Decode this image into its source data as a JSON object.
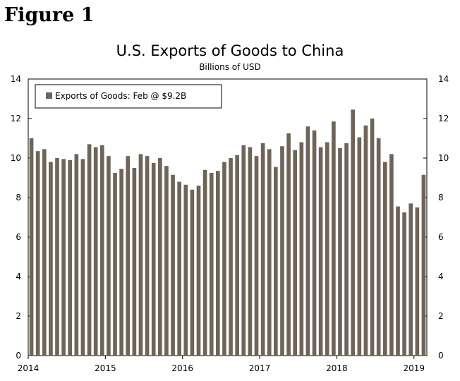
{
  "figure_label": "Figure 1",
  "chart_data": {
    "type": "bar",
    "title": "U.S. Exports of Goods to China",
    "subtitle": "Billions of USD",
    "legend_label": "Exports of Goods: Feb @ $9.2B",
    "legend_position": "top-left",
    "bar_color": "#6e6458",
    "ylim": [
      0,
      14
    ],
    "y_ticks": [
      0,
      2,
      4,
      6,
      8,
      10,
      12,
      14
    ],
    "x_tick_labels": [
      "2014",
      "2015",
      "2016",
      "2017",
      "2018",
      "2019"
    ],
    "x_tick_start_index": 0,
    "x_tick_step": 12,
    "categories": [
      "2014-01",
      "2014-02",
      "2014-03",
      "2014-04",
      "2014-05",
      "2014-06",
      "2014-07",
      "2014-08",
      "2014-09",
      "2014-10",
      "2014-11",
      "2014-12",
      "2015-01",
      "2015-02",
      "2015-03",
      "2015-04",
      "2015-05",
      "2015-06",
      "2015-07",
      "2015-08",
      "2015-09",
      "2015-10",
      "2015-11",
      "2015-12",
      "2016-01",
      "2016-02",
      "2016-03",
      "2016-04",
      "2016-05",
      "2016-06",
      "2016-07",
      "2016-08",
      "2016-09",
      "2016-10",
      "2016-11",
      "2016-12",
      "2017-01",
      "2017-02",
      "2017-03",
      "2017-04",
      "2017-05",
      "2017-06",
      "2017-07",
      "2017-08",
      "2017-09",
      "2017-10",
      "2017-11",
      "2017-12",
      "2018-01",
      "2018-02",
      "2018-03",
      "2018-04",
      "2018-05",
      "2018-06",
      "2018-07",
      "2018-08",
      "2018-09",
      "2018-10",
      "2018-11",
      "2018-12",
      "2019-01",
      "2019-02"
    ],
    "values": [
      11.0,
      10.35,
      10.45,
      9.8,
      10.0,
      9.95,
      9.9,
      10.2,
      9.95,
      10.7,
      10.55,
      10.65,
      10.1,
      9.25,
      9.45,
      10.1,
      9.5,
      10.2,
      10.1,
      9.75,
      10.0,
      9.6,
      9.15,
      8.8,
      8.65,
      8.4,
      8.6,
      9.4,
      9.25,
      9.35,
      9.8,
      10.0,
      10.15,
      10.65,
      10.55,
      10.1,
      10.75,
      10.45,
      9.55,
      10.6,
      11.25,
      10.4,
      10.8,
      11.6,
      11.4,
      10.55,
      10.8,
      11.85,
      10.5,
      10.75,
      12.45,
      11.05,
      11.65,
      12.0,
      11.0,
      9.8,
      10.2,
      7.55,
      7.25,
      7.7,
      7.5,
      9.15
    ]
  }
}
